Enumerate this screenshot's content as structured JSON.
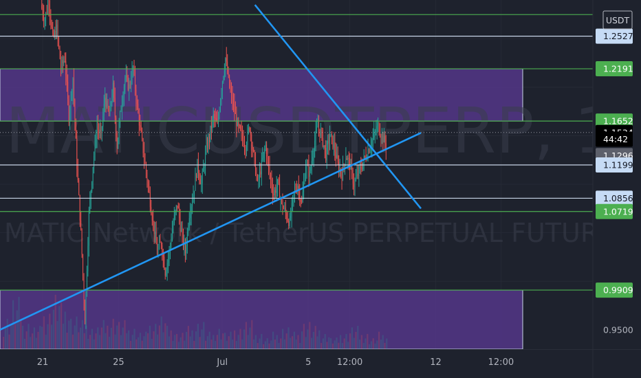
{
  "chart_data": {
    "type": "candlestick",
    "symbol": "MATICUSDTPERP, 1h",
    "description": "MATIC Network / TetherUS PERPETUAL FUTURES",
    "currency": "USDT",
    "ylim": [
      0.93,
      1.29
    ],
    "x_tick_labels": [
      "21",
      "25",
      "Jul",
      "5",
      "12:00",
      "12",
      "12:00"
    ],
    "x_tick_values": [
      0.072,
      0.2,
      0.375,
      0.52,
      0.59,
      0.735,
      0.845
    ],
    "price_levels": [
      {
        "label": "1.2527",
        "value": 1.2527,
        "style": "light"
      },
      {
        "label": "1.2191",
        "value": 1.2191,
        "style": "green"
      },
      {
        "label": "1.1652",
        "value": 1.1652,
        "style": "green"
      },
      {
        "label": "1.1534",
        "value": 1.1534,
        "style": "current"
      },
      {
        "label": "44:42",
        "value": 1.1465,
        "style": "current"
      },
      {
        "label": "1.1296",
        "value": 1.1296,
        "style": "gray"
      },
      {
        "label": "1.1199",
        "value": 1.1199,
        "style": "light"
      },
      {
        "label": "1.0856",
        "value": 1.0856,
        "style": "light"
      },
      {
        "label": "1.0719",
        "value": 1.0719,
        "style": "green"
      },
      {
        "label": "0.9909",
        "value": 0.9909,
        "style": "green"
      },
      {
        "label": "0.9500",
        "value": 0.95,
        "style": "plain"
      }
    ],
    "horizontal_lines": [
      {
        "value": 1.275,
        "color": "green"
      },
      {
        "value": 1.2527,
        "color": "light"
      },
      {
        "value": 1.2191,
        "color": "green"
      },
      {
        "value": 1.1652,
        "color": "green"
      },
      {
        "value": 1.1199,
        "color": "light"
      },
      {
        "value": 1.0856,
        "color": "light"
      },
      {
        "value": 1.0719,
        "color": "green"
      },
      {
        "value": 0.9909,
        "color": "green"
      }
    ],
    "zones": [
      {
        "from": 1.1652,
        "to": 1.2191,
        "color": "#5b3a94"
      },
      {
        "from": 0.925,
        "to": 0.9909,
        "color": "#5b3a94"
      }
    ],
    "trendlines": [
      {
        "x1": 0.0,
        "y1": 0.95,
        "x2": 0.71,
        "y2": 1.153
      },
      {
        "x1": 0.43,
        "y1": 1.285,
        "x2": 0.71,
        "y2": 1.075
      }
    ],
    "price_path": [
      1.285,
      1.27,
      1.29,
      1.25,
      1.26,
      1.22,
      1.23,
      1.17,
      1.21,
      1.12,
      1.05,
      0.96,
      1.07,
      1.12,
      1.16,
      1.15,
      1.19,
      1.17,
      1.2,
      1.14,
      1.18,
      1.21,
      1.2,
      1.22,
      1.18,
      1.15,
      1.12,
      1.09,
      1.06,
      1.03,
      1.04,
      1.01,
      1.03,
      1.06,
      1.08,
      1.05,
      1.03,
      1.07,
      1.09,
      1.12,
      1.1,
      1.13,
      1.15,
      1.17,
      1.16,
      1.2,
      1.23,
      1.2,
      1.18,
      1.16,
      1.15,
      1.14,
      1.16,
      1.13,
      1.1,
      1.12,
      1.14,
      1.11,
      1.09,
      1.1,
      1.08,
      1.07,
      1.06,
      1.09,
      1.1,
      1.08,
      1.12,
      1.11,
      1.14,
      1.16,
      1.15,
      1.13,
      1.15,
      1.14,
      1.12,
      1.11,
      1.13,
      1.12,
      1.1,
      1.11,
      1.12,
      1.13,
      1.14,
      1.15,
      1.16,
      1.15,
      1.14
    ],
    "volume_path": [
      0.6,
      0.9,
      0.5,
      0.4,
      0.7,
      1.0,
      0.8,
      0.6,
      0.5,
      0.4,
      0.5,
      0.6,
      0.5,
      0.4,
      0.3,
      0.5,
      0.6,
      0.4,
      0.3,
      0.4,
      0.5,
      0.3,
      0.4,
      0.3,
      0.4,
      0.5,
      0.3,
      0.2,
      0.3,
      0.4,
      0.3,
      0.5,
      0.4,
      0.3,
      0.2,
      0.3,
      0.4,
      0.3,
      0.2,
      0.3
    ]
  }
}
